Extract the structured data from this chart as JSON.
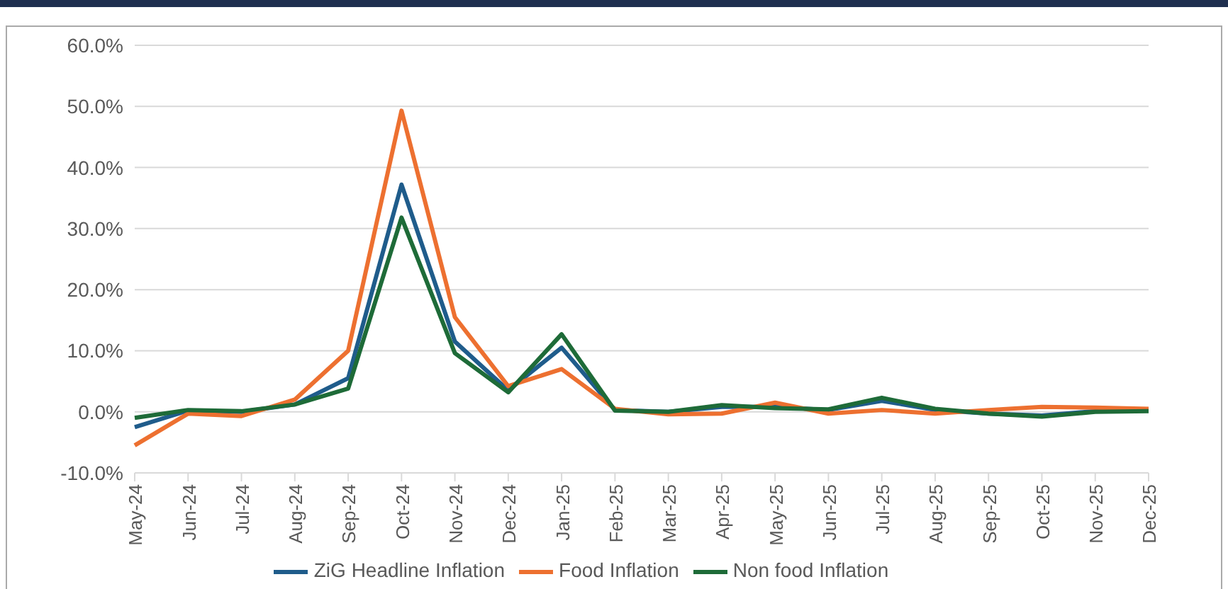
{
  "chart_data": {
    "type": "line",
    "categories": [
      "May-24",
      "Jun-24",
      "Jul-24",
      "Aug-24",
      "Sep-24",
      "Oct-24",
      "Nov-24",
      "Dec-24",
      "Jan-25",
      "Feb-25",
      "Mar-25",
      "Apr-25",
      "May-25",
      "Jun-25",
      "Jul-25",
      "Aug-25",
      "Sep-25",
      "Oct-25",
      "Nov-25",
      "Dec-25"
    ],
    "series": [
      {
        "name": "ZiG Headline Inflation",
        "color": "#1f5c8b",
        "values": [
          -2.5,
          0.2,
          0,
          1.2,
          5.5,
          37.2,
          11.5,
          3.5,
          10.5,
          0.3,
          0,
          0.8,
          0.8,
          0.3,
          1.8,
          0.3,
          -0.3,
          -0.6,
          0.1,
          0.2
        ]
      },
      {
        "name": "Food Inflation",
        "color": "#ed7030",
        "values": [
          -5.5,
          -0.3,
          -0.7,
          2,
          10,
          49.3,
          15.5,
          4.2,
          7,
          0.5,
          -0.4,
          -0.3,
          1.5,
          -0.3,
          0.3,
          -0.3,
          0.3,
          0.8,
          0.7,
          0.5
        ]
      },
      {
        "name": "Non food Inflation",
        "color": "#1e6b38",
        "values": [
          -1,
          0.3,
          0.1,
          1.2,
          3.8,
          31.8,
          9.6,
          3.2,
          12.7,
          0.2,
          0,
          1.1,
          0.6,
          0.4,
          2.3,
          0.5,
          -0.3,
          -0.8,
          0,
          0.1
        ]
      }
    ],
    "ylim": [
      -10,
      60
    ],
    "yticks": [
      {
        "value": -10,
        "label": "-10.0%"
      },
      {
        "value": 0,
        "label": "0.0%"
      },
      {
        "value": 10,
        "label": "10.0%"
      },
      {
        "value": 20,
        "label": "20.0%"
      },
      {
        "value": 30,
        "label": "30.0%"
      },
      {
        "value": 40,
        "label": "40.0%"
      },
      {
        "value": 50,
        "label": "50.0%"
      },
      {
        "value": 60,
        "label": "60.0%"
      }
    ],
    "grid": "y",
    "legend": "bottom",
    "marker": "none",
    "line_style": "solid"
  }
}
